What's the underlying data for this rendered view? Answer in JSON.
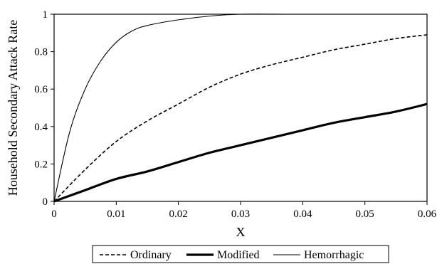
{
  "chart_data": {
    "type": "line",
    "xlabel": "X",
    "ylabel": "Household Secondary Attack Rate",
    "xlim": [
      0,
      0.06
    ],
    "ylim": [
      0,
      1
    ],
    "x_ticks": [
      "0",
      "0.01",
      "0.02",
      "0.03",
      "0.04",
      "0.05",
      "0.06"
    ],
    "y_ticks": [
      "0",
      "0.2",
      "0.4",
      "0.6",
      "0.8",
      "1"
    ],
    "grid": false,
    "legend_position": "bottom",
    "series": [
      {
        "name": "Ordinary",
        "style": "dashed",
        "x": [
          0,
          0.005,
          0.01,
          0.015,
          0.02,
          0.025,
          0.03,
          0.035,
          0.04,
          0.045,
          0.05,
          0.055,
          0.06
        ],
        "y": [
          0,
          0.17,
          0.32,
          0.43,
          0.52,
          0.61,
          0.68,
          0.73,
          0.77,
          0.81,
          0.84,
          0.87,
          0.89
        ]
      },
      {
        "name": "Modified",
        "style": "thick",
        "x": [
          0,
          0.005,
          0.01,
          0.015,
          0.02,
          0.025,
          0.03,
          0.035,
          0.04,
          0.045,
          0.05,
          0.055,
          0.06
        ],
        "y": [
          0,
          0.06,
          0.12,
          0.16,
          0.21,
          0.26,
          0.3,
          0.34,
          0.38,
          0.42,
          0.45,
          0.48,
          0.52
        ]
      },
      {
        "name": "Hemorrhagic",
        "style": "thin",
        "x": [
          0,
          0.0025,
          0.005,
          0.0075,
          0.01,
          0.0125,
          0.015,
          0.02,
          0.025,
          0.03,
          0.037
        ],
        "y": [
          0,
          0.37,
          0.6,
          0.75,
          0.85,
          0.91,
          0.94,
          0.97,
          0.99,
          1.0,
          1.0
        ]
      }
    ]
  }
}
